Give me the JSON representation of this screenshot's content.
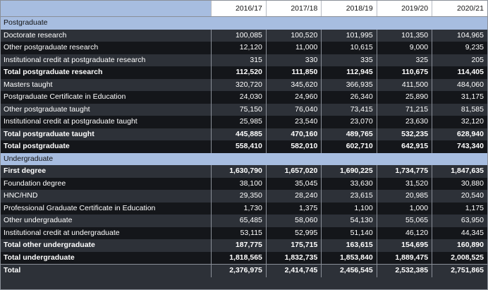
{
  "years": [
    "2016/17",
    "2017/18",
    "2018/19",
    "2019/20",
    "2020/21"
  ],
  "rows": [
    {
      "kind": "section",
      "label": "Postgraduate"
    },
    {
      "kind": "data",
      "bold": false,
      "label": "Doctorate research",
      "values": [
        "100,085",
        "100,520",
        "101,995",
        "101,350",
        "104,965"
      ]
    },
    {
      "kind": "data",
      "bold": false,
      "label": "Other postgraduate research",
      "values": [
        "12,120",
        "11,000",
        "10,615",
        "9,000",
        "9,235"
      ]
    },
    {
      "kind": "data",
      "bold": false,
      "label": "Institutional credit at postgraduate research",
      "values": [
        "315",
        "330",
        "335",
        "325",
        "205"
      ]
    },
    {
      "kind": "data",
      "bold": true,
      "label": "Total postgraduate research",
      "values": [
        "112,520",
        "111,850",
        "112,945",
        "110,675",
        "114,405"
      ]
    },
    {
      "kind": "data",
      "bold": false,
      "label": "Masters taught",
      "values": [
        "320,720",
        "345,620",
        "366,935",
        "411,500",
        "484,060"
      ]
    },
    {
      "kind": "data",
      "bold": false,
      "label": "Postgraduate Certificate in Education",
      "values": [
        "24,030",
        "24,960",
        "26,340",
        "25,890",
        "31,175"
      ]
    },
    {
      "kind": "data",
      "bold": false,
      "label": "Other postgraduate taught",
      "values": [
        "75,150",
        "76,040",
        "73,415",
        "71,215",
        "81,585"
      ]
    },
    {
      "kind": "data",
      "bold": false,
      "label": "Institutional credit at postgraduate taught",
      "values": [
        "25,985",
        "23,540",
        "23,070",
        "23,630",
        "32,120"
      ]
    },
    {
      "kind": "data",
      "bold": true,
      "label": "Total postgraduate taught",
      "values": [
        "445,885",
        "470,160",
        "489,765",
        "532,235",
        "628,940"
      ]
    },
    {
      "kind": "data",
      "bold": true,
      "label": "Total postgraduate",
      "values": [
        "558,410",
        "582,010",
        "602,710",
        "642,915",
        "743,340"
      ]
    },
    {
      "kind": "section",
      "label": "Undergraduate"
    },
    {
      "kind": "data",
      "bold": true,
      "label": "First degree",
      "values": [
        "1,630,790",
        "1,657,020",
        "1,690,225",
        "1,734,775",
        "1,847,635"
      ]
    },
    {
      "kind": "data",
      "bold": false,
      "label": "Foundation degree",
      "values": [
        "38,100",
        "35,045",
        "33,630",
        "31,520",
        "30,880"
      ]
    },
    {
      "kind": "data",
      "bold": false,
      "label": "HNC/HND",
      "values": [
        "29,350",
        "28,240",
        "23,615",
        "20,985",
        "20,540"
      ]
    },
    {
      "kind": "data",
      "bold": false,
      "label": "Professional Graduate Certificate in Education",
      "values": [
        "1,730",
        "1,375",
        "1,100",
        "1,000",
        "1,175"
      ]
    },
    {
      "kind": "data",
      "bold": false,
      "label": "Other undergraduate",
      "values": [
        "65,485",
        "58,060",
        "54,130",
        "55,065",
        "63,950"
      ]
    },
    {
      "kind": "data",
      "bold": false,
      "label": "Institutional credit at undergraduate",
      "values": [
        "53,115",
        "52,995",
        "51,140",
        "46,120",
        "44,345"
      ]
    },
    {
      "kind": "data",
      "bold": true,
      "label": "Total other undergraduate",
      "values": [
        "187,775",
        "175,715",
        "163,615",
        "154,695",
        "160,890"
      ]
    },
    {
      "kind": "data",
      "bold": true,
      "label": "Total undergraduate",
      "values": [
        "1,818,565",
        "1,832,735",
        "1,853,840",
        "1,889,475",
        "2,008,525"
      ]
    },
    {
      "kind": "data",
      "bold": true,
      "label": "Total",
      "values": [
        "2,376,975",
        "2,414,745",
        "2,456,545",
        "2,532,385",
        "2,751,865"
      ]
    }
  ],
  "colors": {
    "section_bg": "#a7bde0",
    "row_bg": "#2d3138",
    "row_alt_bg": "#14161a",
    "header_bg": "#ffffff"
  }
}
